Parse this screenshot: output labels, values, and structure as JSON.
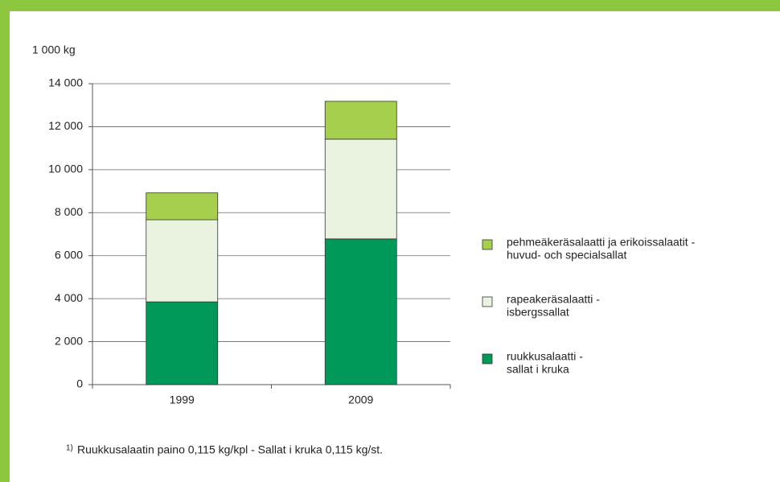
{
  "chart_data": {
    "type": "stacked_bar",
    "ylabel": "1 000 kg",
    "categories": [
      "1999",
      "2009"
    ],
    "series": [
      {
        "name": [
          "ruukkusalaatti -",
          "sallat i kruka"
        ],
        "color": "#00995a",
        "values": [
          3850,
          6780
        ]
      },
      {
        "name": [
          "rapeakeräsalaatti -",
          "isbergssallat"
        ],
        "color": "#eaf3df",
        "values": [
          3820,
          4640
        ]
      },
      {
        "name": [
          "pehmeäkeräsalaatti ja erikoissalaatit -",
          "huvud- och specialsallat"
        ],
        "color": "#a6cf4e",
        "values": [
          1250,
          1760
        ]
      }
    ],
    "ylim": [
      0,
      14000
    ],
    "yticks": [
      0,
      {
        "value": 2000,
        "label": "2 000"
      },
      {
        "value": 4000,
        "label": "4 000"
      },
      {
        "value": 6000,
        "label": "6 000"
      },
      {
        "value": 8000,
        "label": "8 000"
      },
      {
        "value": 10000,
        "label": "10 000"
      },
      {
        "value": 12000,
        "label": "12 000"
      },
      {
        "value": 14000,
        "label": "14 000"
      }
    ],
    "grid": true,
    "legend": "right",
    "note_marker": "1)",
    "note": "Ruukkusalaatin paino 0,115 kg/kpl - Sallat i kruka 0,115 kg/st."
  }
}
